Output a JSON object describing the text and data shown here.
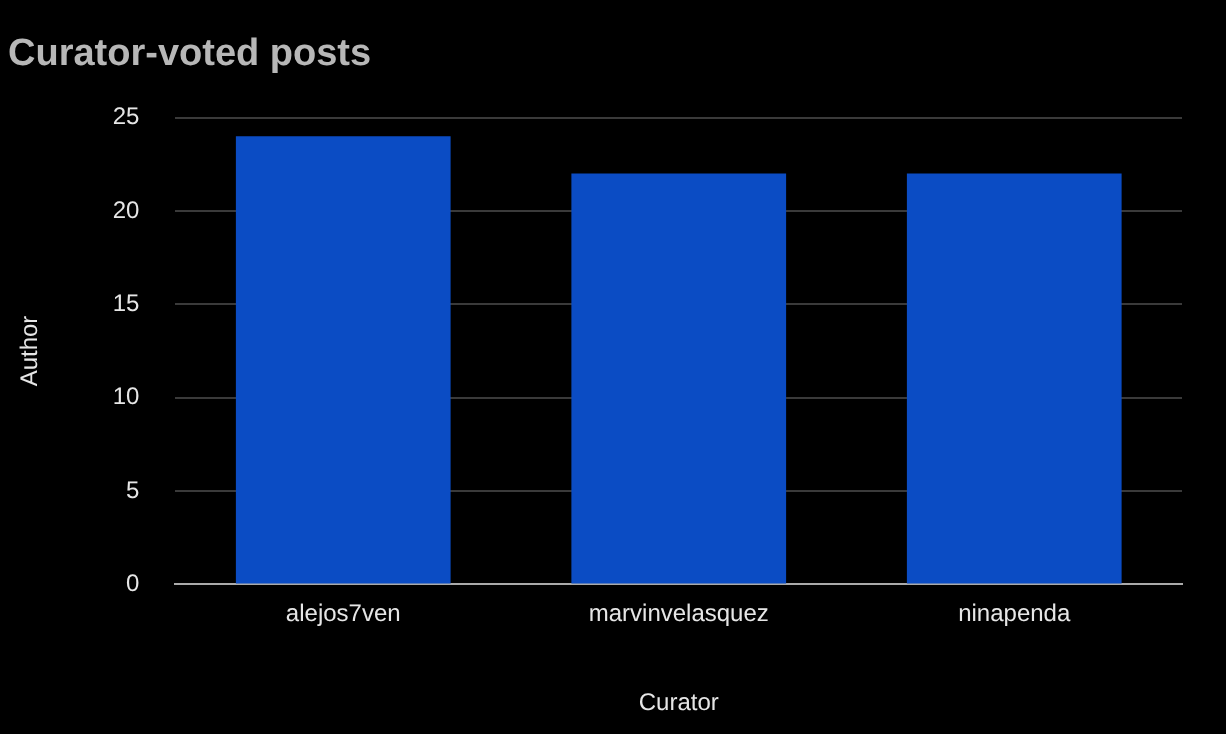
{
  "chart_data": {
    "type": "bar",
    "title": "Curator-voted posts",
    "xlabel": "Curator",
    "ylabel": "Author",
    "categories": [
      "alejos7ven",
      "marvinvelasquez",
      "ninapenda"
    ],
    "values": [
      24,
      22,
      22
    ],
    "color": "#0b4cc4",
    "ylim": [
      0,
      25
    ],
    "yticks": [
      0,
      5,
      10,
      15,
      20,
      25
    ],
    "grid": "y",
    "legend": false
  }
}
